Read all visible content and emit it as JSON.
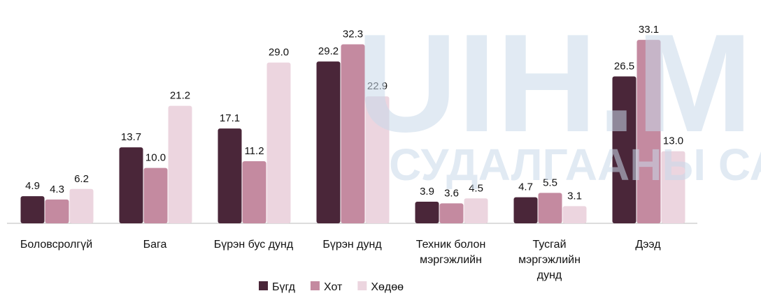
{
  "chart_data": {
    "type": "bar",
    "categories": [
      "Боловсролгүй",
      "Бага",
      "Бүрэн бус дунд",
      "Бүрэн дунд",
      "Техник болон мэргэжлийн",
      "Тусгай мэргэжлийн дунд",
      "Дээд"
    ],
    "series": [
      {
        "name": "Бүгд",
        "color": "#4a2639",
        "values": [
          4.9,
          13.7,
          17.1,
          29.2,
          3.9,
          4.7,
          26.5
        ],
        "value_labels": [
          "4.9",
          "13.7",
          "17.1",
          "29.2",
          "3.9",
          "4.7",
          "26.5"
        ]
      },
      {
        "name": "Хот",
        "color": "#c48aa0",
        "values": [
          4.3,
          10.0,
          11.2,
          32.3,
          3.6,
          5.5,
          33.1
        ],
        "value_labels": [
          "4.3",
          "10.0",
          "11.2",
          "32.3",
          "3.6",
          "5.5",
          "33.1"
        ]
      },
      {
        "name": "Хөдөө",
        "color": "#ecd5df",
        "values": [
          6.2,
          21.2,
          29.0,
          22.9,
          4.5,
          3.1,
          13.0
        ],
        "value_labels": [
          "6.2",
          "21.2",
          "29.0",
          "22.9",
          "4.5",
          "3.1",
          "13.0"
        ]
      }
    ],
    "ylim": [
      0,
      35
    ],
    "legend": "bottom",
    "watermark": [
      "UIH.MN",
      "СУДАЛГААНЫ САН"
    ]
  }
}
